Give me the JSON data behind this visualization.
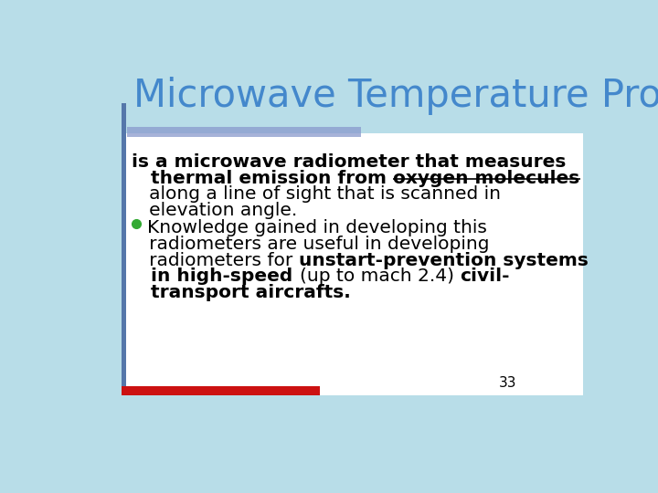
{
  "title": "Microwave Temperature Profiler",
  "title_color": "#4488cc",
  "title_fontsize": 30,
  "bg_color": "#b8dde8",
  "footer_bar_color": "#cc1111",
  "page_number": "33",
  "left_bar_color": "#5577aa",
  "header_bar_color": "#8899cc",
  "line1": "is a microwave radiometer that measures",
  "line2_plain": "   thermal emission from ",
  "line2_underline": "oxygen molecules",
  "line3": "   along a line of sight that is scanned in",
  "line4": "   elevation angle.",
  "bullet_color": "#33aa33",
  "bullet_line1": "Knowledge gained in developing this",
  "bullet_line2": "   radiometers are useful in developing",
  "bullet_line3_plain": "   radiometers for ",
  "bullet_line3_bold": "unstart-prevention systems",
  "bullet_line4_bold1": "   in high-speed ",
  "bullet_line4_plain": "(up to mach 2.4) ",
  "bullet_line4_bold2": "civil-",
  "bullet_line5_bold": "   transport aircrafts.",
  "text_fontsize": 14.5
}
